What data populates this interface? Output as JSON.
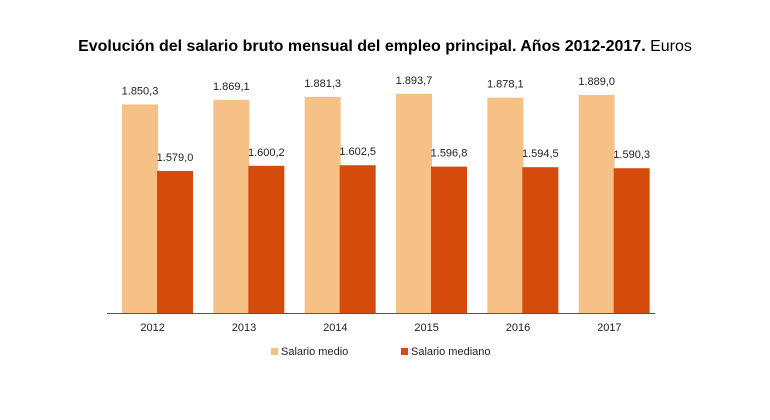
{
  "title": "Evolución del salario bruto mensual del empleo principal. Años 2012-2017.",
  "title_unit": "Euros",
  "chart_data": {
    "type": "bar",
    "title": "Evolución del salario bruto mensual del empleo principal. Años 2012-2017. Euros",
    "categories": [
      "2012",
      "2013",
      "2014",
      "2015",
      "2016",
      "2017"
    ],
    "series": [
      {
        "name": "Salario medio",
        "color": "#f5c186",
        "values": [
          1850.3,
          1869.1,
          1881.3,
          1893.7,
          1878.1,
          1889.0
        ],
        "labels": [
          "1.850,3",
          "1.869,1",
          "1.881,3",
          "1.893,7",
          "1.878,1",
          "1.889,0"
        ]
      },
      {
        "name": "Salario mediano",
        "color": "#d54b0c",
        "values": [
          1579.0,
          1600.2,
          1602.5,
          1596.8,
          1594.5,
          1590.3
        ],
        "labels": [
          "1.579,0",
          "1.600,2",
          "1.602,5",
          "1.596,8",
          "1.594,5",
          "1.590,3"
        ]
      }
    ],
    "ylim": [
      1000,
      1950
    ],
    "grid": false,
    "legend_position": "bottom"
  }
}
